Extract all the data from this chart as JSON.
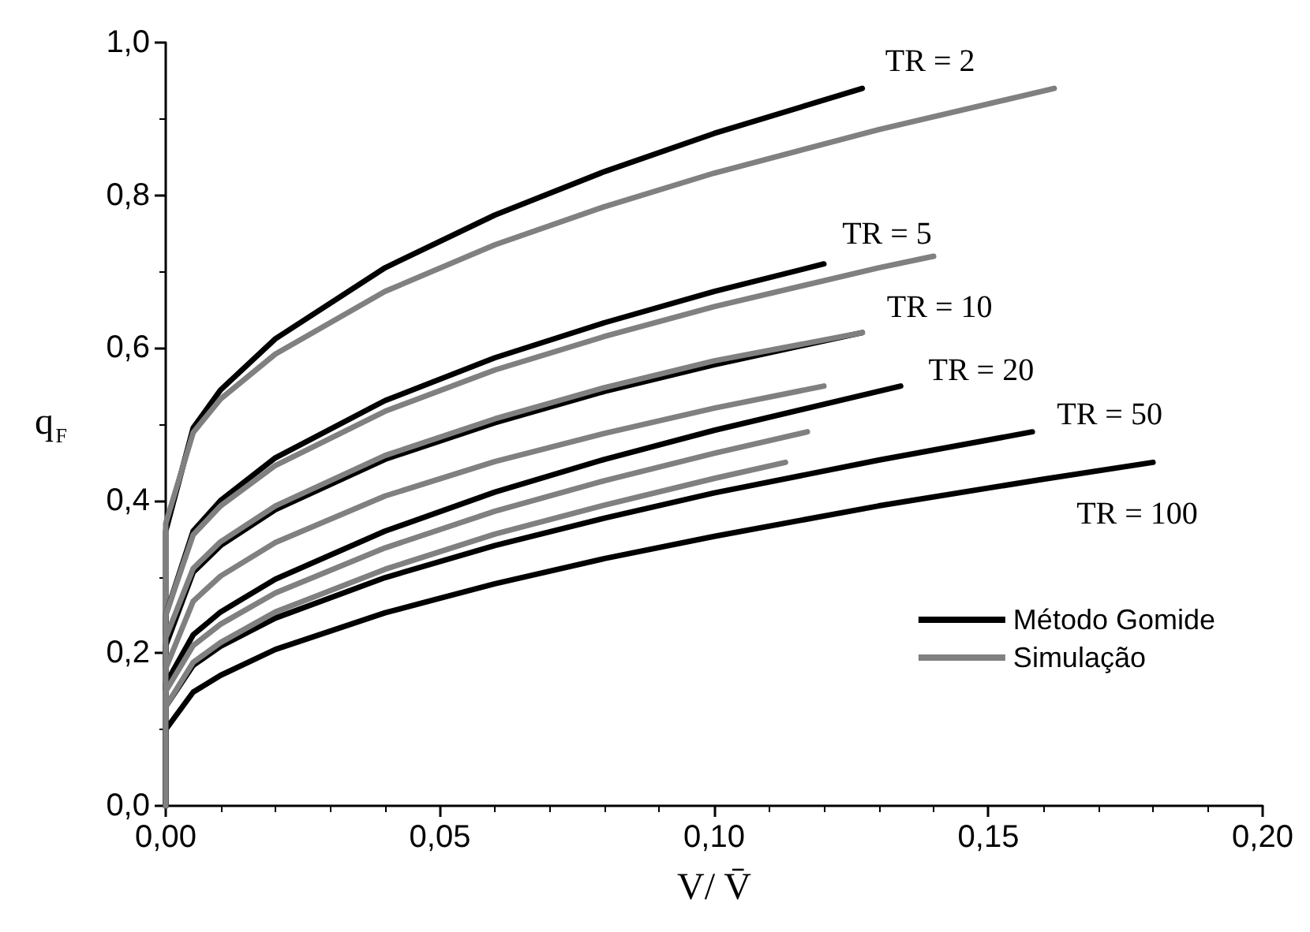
{
  "chart_data": {
    "type": "line",
    "xlabel": "V/ V̄",
    "ylabel": "q$_{F}$",
    "xlim": [
      0,
      0.2
    ],
    "ylim": [
      0,
      1.0
    ],
    "xticks": [
      {
        "value": 0,
        "label": "0,00"
      },
      {
        "value": 0.05,
        "label": "0,05"
      },
      {
        "value": 0.1,
        "label": "0,10"
      },
      {
        "value": 0.15,
        "label": "0,15"
      },
      {
        "value": 0.2,
        "label": "0,20"
      }
    ],
    "yticks": [
      {
        "value": 0,
        "label": "0,0"
      },
      {
        "value": 0.2,
        "label": "0,2"
      },
      {
        "value": 0.4,
        "label": "0,4"
      },
      {
        "value": 0.6,
        "label": "0,6"
      },
      {
        "value": 0.8,
        "label": "0,8"
      },
      {
        "value": 1.0,
        "label": "1,0"
      }
    ],
    "grid": false,
    "legend": "bottom right",
    "marker": "none",
    "line_style": "solid",
    "series": [
      {
        "name": "Método Gomide",
        "color": "#000000",
        "x": [
          0,
          0,
          0.005,
          0.01,
          0.02,
          0.04,
          0.06,
          0.08,
          0.1,
          0.127
        ],
        "values": [
          0,
          0.36,
          0.495,
          0.545,
          0.612,
          0.705,
          0.774,
          0.831,
          0.881,
          0.94
        ]
      },
      {
        "name": "Simulação",
        "color": "#808080",
        "x": [
          0,
          0,
          0.005,
          0.01,
          0.02,
          0.04,
          0.06,
          0.08,
          0.1,
          0.13,
          0.162
        ],
        "values": [
          0,
          0.37,
          0.489,
          0.533,
          0.592,
          0.674,
          0.735,
          0.785,
          0.829,
          0.886,
          0.94
        ]
      },
      {
        "color": "#000000",
        "x": [
          0,
          0,
          0.005,
          0.01,
          0.02,
          0.04,
          0.06,
          0.08,
          0.1,
          0.12
        ],
        "values": [
          0,
          0.25,
          0.36,
          0.4,
          0.456,
          0.531,
          0.587,
          0.633,
          0.674,
          0.71
        ]
      },
      {
        "color": "#808080",
        "x": [
          0,
          0,
          0.005,
          0.01,
          0.02,
          0.04,
          0.06,
          0.08,
          0.1,
          0.13,
          0.14
        ],
        "values": [
          0,
          0.25,
          0.355,
          0.393,
          0.446,
          0.517,
          0.571,
          0.615,
          0.654,
          0.705,
          0.72
        ]
      },
      {
        "color": "#000000",
        "x": [
          0,
          0,
          0.005,
          0.01,
          0.02,
          0.04,
          0.06,
          0.08,
          0.1,
          0.127
        ],
        "values": [
          0,
          0.21,
          0.306,
          0.341,
          0.388,
          0.454,
          0.502,
          0.543,
          0.578,
          0.62
        ]
      },
      {
        "color": "#808080",
        "x": [
          0,
          0,
          0.005,
          0.01,
          0.02,
          0.04,
          0.06,
          0.08,
          0.1,
          0.127
        ],
        "values": [
          0,
          0.22,
          0.311,
          0.346,
          0.393,
          0.459,
          0.507,
          0.548,
          0.583,
          0.62
        ]
      },
      {
        "color": "#000000",
        "x": [
          0,
          0,
          0.005,
          0.01,
          0.02,
          0.04,
          0.06,
          0.08,
          0.1,
          0.134
        ],
        "values": [
          0,
          0.16,
          0.224,
          0.254,
          0.297,
          0.36,
          0.411,
          0.454,
          0.492,
          0.55
        ]
      },
      {
        "color": "#808080",
        "x": [
          0,
          0,
          0.005,
          0.01,
          0.02,
          0.04,
          0.06,
          0.08,
          0.1,
          0.12
        ],
        "values": [
          0,
          0.18,
          0.268,
          0.301,
          0.345,
          0.406,
          0.451,
          0.488,
          0.521,
          0.55
        ]
      },
      {
        "color": "#000000",
        "x": [
          0,
          0,
          0.005,
          0.01,
          0.02,
          0.04,
          0.06,
          0.08,
          0.1,
          0.13,
          0.158
        ],
        "values": [
          0,
          0.13,
          0.184,
          0.209,
          0.246,
          0.299,
          0.341,
          0.377,
          0.41,
          0.453,
          0.49
        ]
      },
      {
        "color": "#808080",
        "x": [
          0,
          0,
          0.005,
          0.01,
          0.02,
          0.04,
          0.06,
          0.08,
          0.1,
          0.117
        ],
        "values": [
          0,
          0.15,
          0.21,
          0.238,
          0.279,
          0.338,
          0.386,
          0.426,
          0.462,
          0.49
        ]
      },
      {
        "color": "#000000",
        "x": [
          0,
          0,
          0.005,
          0.01,
          0.02,
          0.04,
          0.06,
          0.08,
          0.1,
          0.13,
          0.16,
          0.18
        ],
        "values": [
          0,
          0.1,
          0.149,
          0.171,
          0.205,
          0.253,
          0.291,
          0.324,
          0.353,
          0.393,
          0.428,
          0.45
        ]
      },
      {
        "color": "#808080",
        "x": [
          0,
          0,
          0.005,
          0.01,
          0.02,
          0.04,
          0.06,
          0.08,
          0.1,
          0.113
        ],
        "values": [
          0,
          0.13,
          0.188,
          0.214,
          0.254,
          0.31,
          0.356,
          0.394,
          0.429,
          0.45
        ]
      }
    ],
    "annotations": [
      {
        "text": "TR = 2",
        "x": 0.127,
        "y": 0.94
      },
      {
        "text": "TR = 5",
        "x": 0.12,
        "y": 0.71
      },
      {
        "text": "TR = 10",
        "x": 0.127,
        "y": 0.62
      },
      {
        "text": "TR = 20",
        "x": 0.134,
        "y": 0.55
      },
      {
        "text": "TR = 50",
        "x": 0.158,
        "y": 0.49
      },
      {
        "text": "TR = 100",
        "x": 0.18,
        "y": 0.45
      }
    ]
  }
}
